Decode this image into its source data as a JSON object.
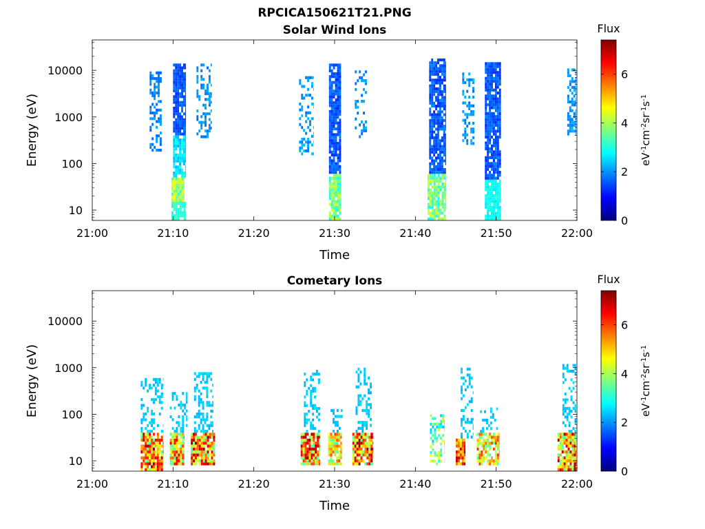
{
  "figure": {
    "title": "RPCICA150621T21.PNG"
  },
  "colormap": {
    "name": "jet",
    "stops": [
      "#00007f",
      "#0000ff",
      "#007fff",
      "#00ffff",
      "#7fff7f",
      "#ffff00",
      "#ff7f00",
      "#ff0000",
      "#7f0000"
    ]
  },
  "chart_data": [
    {
      "type": "heatmap",
      "title": "Solar Wind Ions",
      "xlabel": "Time",
      "ylabel": "Energy (eV)",
      "x_ticks": [
        "21:00",
        "21:10",
        "21:20",
        "21:30",
        "21:40",
        "21:50",
        "22:00"
      ],
      "x_range_minutes": [
        0,
        60
      ],
      "y_scale": "log",
      "y_ticks": [
        "10",
        "100",
        "1000",
        "10000"
      ],
      "ylim": [
        6,
        45000
      ],
      "colorbar": {
        "label": "Flux",
        "units": "eV-1cm-2sr-1s-1",
        "range": [
          0,
          7.4
        ],
        "ticks": [
          "0",
          "2",
          "4",
          "6"
        ]
      },
      "blobs": [
        {
          "t0": 7.1,
          "t1": 8.6,
          "e_lo": 180,
          "e_hi": 9500,
          "vlo": 1.6,
          "vhi": 2.2,
          "dens": 0.45
        },
        {
          "t0": 9.8,
          "t1": 11.4,
          "e_lo": 15,
          "e_hi": 50,
          "vlo": 3.0,
          "vhi": 4.6,
          "dens": 0.95
        },
        {
          "t0": 9.8,
          "t1": 11.6,
          "e_lo": 6,
          "e_hi": 15,
          "vlo": 2.9,
          "vhi": 3.3,
          "dens": 0.85
        },
        {
          "t0": 10.0,
          "t1": 11.6,
          "e_lo": 50,
          "e_hi": 400,
          "vlo": 2.2,
          "vhi": 2.9,
          "dens": 0.75
        },
        {
          "t0": 10.0,
          "t1": 11.6,
          "e_lo": 400,
          "e_hi": 14000,
          "vlo": 1.2,
          "vhi": 1.8,
          "dens": 0.9
        },
        {
          "t0": 12.9,
          "t1": 14.8,
          "e_lo": 350,
          "e_hi": 14000,
          "vlo": 1.7,
          "vhi": 2.3,
          "dens": 0.35
        },
        {
          "t0": 25.6,
          "t1": 27.4,
          "e_lo": 150,
          "e_hi": 7500,
          "vlo": 1.7,
          "vhi": 2.4,
          "dens": 0.28
        },
        {
          "t0": 29.3,
          "t1": 30.8,
          "e_lo": 6,
          "e_hi": 60,
          "vlo": 2.8,
          "vhi": 4.4,
          "dens": 0.9
        },
        {
          "t0": 29.3,
          "t1": 30.8,
          "e_lo": 60,
          "e_hi": 14000,
          "vlo": 1.2,
          "vhi": 1.9,
          "dens": 0.9
        },
        {
          "t0": 32.5,
          "t1": 34.0,
          "e_lo": 350,
          "e_hi": 10000,
          "vlo": 1.7,
          "vhi": 2.3,
          "dens": 0.35
        },
        {
          "t0": 41.5,
          "t1": 43.8,
          "e_lo": 6,
          "e_hi": 60,
          "vlo": 2.8,
          "vhi": 4.4,
          "dens": 0.85
        },
        {
          "t0": 41.7,
          "t1": 43.8,
          "e_lo": 60,
          "e_hi": 18000,
          "vlo": 1.2,
          "vhi": 1.9,
          "dens": 0.8
        },
        {
          "t0": 45.8,
          "t1": 47.3,
          "e_lo": 250,
          "e_hi": 9000,
          "vlo": 1.7,
          "vhi": 2.3,
          "dens": 0.4
        },
        {
          "t0": 48.6,
          "t1": 50.6,
          "e_lo": 6,
          "e_hi": 45,
          "vlo": 2.6,
          "vhi": 3.1,
          "dens": 0.9
        },
        {
          "t0": 48.6,
          "t1": 50.6,
          "e_lo": 45,
          "e_hi": 15000,
          "vlo": 1.2,
          "vhi": 1.9,
          "dens": 0.85
        },
        {
          "t0": 58.8,
          "t1": 59.9,
          "e_lo": 400,
          "e_hi": 11000,
          "vlo": 1.7,
          "vhi": 2.3,
          "dens": 0.6
        }
      ]
    },
    {
      "type": "heatmap",
      "title": "Cometary Ions",
      "xlabel": "Time",
      "ylabel": "Energy (eV)",
      "x_ticks": [
        "21:00",
        "21:10",
        "21:20",
        "21:30",
        "21:40",
        "21:50",
        "22:00"
      ],
      "x_range_minutes": [
        0,
        60
      ],
      "y_scale": "log",
      "y_ticks": [
        "10",
        "100",
        "1000",
        "10000"
      ],
      "ylim": [
        6,
        45000
      ],
      "colorbar": {
        "label": "Flux",
        "units": "eV-1cm-2sr-1s-1",
        "range": [
          0,
          7.4
        ],
        "ticks": [
          "0",
          "2",
          "4",
          "6"
        ]
      },
      "blobs": [
        {
          "t0": 6.0,
          "t1": 8.8,
          "e_lo": 6,
          "e_hi": 40,
          "vlo": 3.3,
          "vhi": 7.3,
          "dens": 0.9
        },
        {
          "t0": 6.0,
          "t1": 8.8,
          "e_lo": 40,
          "e_hi": 600,
          "vlo": 2.2,
          "vhi": 2.6,
          "dens": 0.35
        },
        {
          "t0": 9.6,
          "t1": 11.4,
          "e_lo": 8,
          "e_hi": 40,
          "vlo": 3.3,
          "vhi": 6.8,
          "dens": 0.9
        },
        {
          "t0": 9.6,
          "t1": 11.8,
          "e_lo": 40,
          "e_hi": 300,
          "vlo": 2.2,
          "vhi": 2.6,
          "dens": 0.3
        },
        {
          "t0": 12.2,
          "t1": 15.2,
          "e_lo": 8,
          "e_hi": 40,
          "vlo": 3.3,
          "vhi": 7.3,
          "dens": 0.9
        },
        {
          "t0": 12.6,
          "t1": 15.0,
          "e_lo": 40,
          "e_hi": 800,
          "vlo": 2.2,
          "vhi": 2.6,
          "dens": 0.4
        },
        {
          "t0": 25.8,
          "t1": 28.2,
          "e_lo": 8,
          "e_hi": 40,
          "vlo": 3.3,
          "vhi": 7.3,
          "dens": 0.9
        },
        {
          "t0": 26.2,
          "t1": 28.2,
          "e_lo": 40,
          "e_hi": 900,
          "vlo": 2.2,
          "vhi": 2.6,
          "dens": 0.3
        },
        {
          "t0": 29.2,
          "t1": 30.9,
          "e_lo": 8,
          "e_hi": 40,
          "vlo": 3.3,
          "vhi": 6.2,
          "dens": 0.9
        },
        {
          "t0": 29.5,
          "t1": 31.0,
          "e_lo": 40,
          "e_hi": 150,
          "vlo": 2.2,
          "vhi": 2.6,
          "dens": 0.3
        },
        {
          "t0": 32.2,
          "t1": 34.8,
          "e_lo": 8,
          "e_hi": 40,
          "vlo": 3.3,
          "vhi": 7.3,
          "dens": 0.9
        },
        {
          "t0": 32.6,
          "t1": 34.6,
          "e_lo": 40,
          "e_hi": 1000,
          "vlo": 2.2,
          "vhi": 2.6,
          "dens": 0.35
        },
        {
          "t0": 41.8,
          "t1": 43.6,
          "e_lo": 8,
          "e_hi": 100,
          "vlo": 2.4,
          "vhi": 4.6,
          "dens": 0.45
        },
        {
          "t0": 45.0,
          "t1": 46.2,
          "e_lo": 8,
          "e_hi": 30,
          "vlo": 4.5,
          "vhi": 7.3,
          "dens": 0.9
        },
        {
          "t0": 45.6,
          "t1": 47.2,
          "e_lo": 30,
          "e_hi": 1000,
          "vlo": 2.2,
          "vhi": 2.6,
          "dens": 0.35
        },
        {
          "t0": 47.6,
          "t1": 50.4,
          "e_lo": 8,
          "e_hi": 40,
          "vlo": 3.2,
          "vhi": 6.2,
          "dens": 0.8
        },
        {
          "t0": 48.0,
          "t1": 50.2,
          "e_lo": 40,
          "e_hi": 140,
          "vlo": 2.2,
          "vhi": 2.6,
          "dens": 0.3
        },
        {
          "t0": 57.6,
          "t1": 59.9,
          "e_lo": 6,
          "e_hi": 40,
          "vlo": 3.3,
          "vhi": 7.3,
          "dens": 0.9
        },
        {
          "t0": 58.2,
          "t1": 59.9,
          "e_lo": 40,
          "e_hi": 1200,
          "vlo": 2.2,
          "vhi": 2.6,
          "dens": 0.4
        }
      ]
    }
  ]
}
